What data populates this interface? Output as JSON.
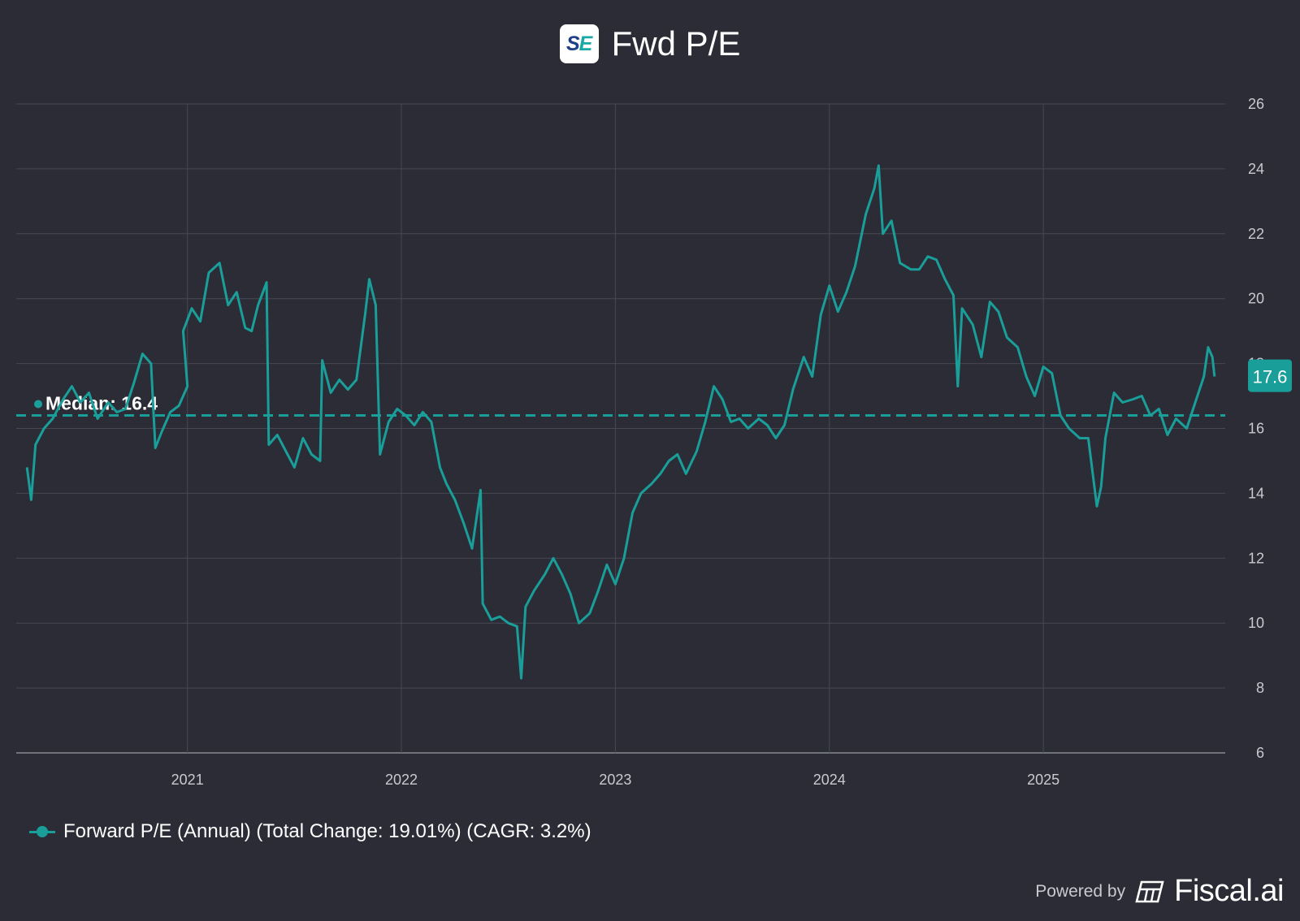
{
  "header": {
    "title": "Fwd P/E",
    "logo_text_s": "S",
    "logo_text_e": "E"
  },
  "legend": {
    "label": "Forward P/E (Annual) (Total Change: 19.01%) (CAGR: 3.2%)"
  },
  "footer": {
    "powered_by": "Powered by",
    "brand": "Fiscal.ai"
  },
  "colors": {
    "background": "#2b2c35",
    "series": "#1a9e9a",
    "grid": "#474852",
    "text": "#ffffff",
    "axis_text": "#c9cad0"
  },
  "chart_data": {
    "type": "line",
    "title": "Fwd P/E",
    "xlabel": "",
    "ylabel": "",
    "x_ticks": [
      "2021",
      "2022",
      "2023",
      "2024",
      "2025"
    ],
    "y_ticks": [
      6,
      8,
      10,
      12,
      14,
      16,
      18,
      20,
      22,
      24,
      26
    ],
    "ylim": [
      6,
      26
    ],
    "xlim": [
      2020.2,
      2025.85
    ],
    "grid": true,
    "y_axis_position": "right",
    "series": [
      {
        "name": "Forward P/E (Annual)",
        "total_change": "19.01%",
        "cagr": "3.2%",
        "last_value_label": "17.6",
        "points": [
          [
            2020.25,
            14.8
          ],
          [
            2020.27,
            13.8
          ],
          [
            2020.29,
            15.5
          ],
          [
            2020.33,
            16.0
          ],
          [
            2020.37,
            16.3
          ],
          [
            2020.42,
            16.9
          ],
          [
            2020.46,
            17.3
          ],
          [
            2020.5,
            16.8
          ],
          [
            2020.54,
            17.1
          ],
          [
            2020.58,
            16.3
          ],
          [
            2020.63,
            16.8
          ],
          [
            2020.67,
            16.5
          ],
          [
            2020.71,
            16.6
          ],
          [
            2020.75,
            17.4
          ],
          [
            2020.79,
            18.3
          ],
          [
            2020.83,
            18.0
          ],
          [
            2020.85,
            15.4
          ],
          [
            2020.88,
            15.9
          ],
          [
            2020.92,
            16.5
          ],
          [
            2020.96,
            16.7
          ],
          [
            2021.0,
            17.3
          ],
          [
            2020.98,
            19.0
          ],
          [
            2021.02,
            19.7
          ],
          [
            2021.06,
            19.3
          ],
          [
            2021.1,
            20.8
          ],
          [
            2021.15,
            21.1
          ],
          [
            2021.19,
            19.8
          ],
          [
            2021.23,
            20.2
          ],
          [
            2021.27,
            19.1
          ],
          [
            2021.3,
            19.0
          ],
          [
            2021.33,
            19.8
          ],
          [
            2021.37,
            20.5
          ],
          [
            2021.38,
            15.5
          ],
          [
            2021.42,
            15.8
          ],
          [
            2021.46,
            15.3
          ],
          [
            2021.5,
            14.8
          ],
          [
            2021.54,
            15.7
          ],
          [
            2021.58,
            15.2
          ],
          [
            2021.62,
            15.0
          ],
          [
            2021.63,
            18.1
          ],
          [
            2021.67,
            17.1
          ],
          [
            2021.71,
            17.5
          ],
          [
            2021.75,
            17.2
          ],
          [
            2021.79,
            17.5
          ],
          [
            2021.83,
            19.5
          ],
          [
            2021.85,
            20.6
          ],
          [
            2021.88,
            19.8
          ],
          [
            2021.9,
            15.2
          ],
          [
            2021.94,
            16.2
          ],
          [
            2021.98,
            16.6
          ],
          [
            2022.02,
            16.4
          ],
          [
            2022.06,
            16.1
          ],
          [
            2022.1,
            16.5
          ],
          [
            2022.14,
            16.2
          ],
          [
            2022.18,
            14.8
          ],
          [
            2022.21,
            14.3
          ],
          [
            2022.25,
            13.8
          ],
          [
            2022.29,
            13.1
          ],
          [
            2022.33,
            12.3
          ],
          [
            2022.37,
            14.1
          ],
          [
            2022.38,
            10.6
          ],
          [
            2022.42,
            10.1
          ],
          [
            2022.46,
            10.2
          ],
          [
            2022.5,
            10.0
          ],
          [
            2022.54,
            9.9
          ],
          [
            2022.56,
            8.3
          ],
          [
            2022.58,
            10.5
          ],
          [
            2022.62,
            11.0
          ],
          [
            2022.67,
            11.5
          ],
          [
            2022.71,
            12.0
          ],
          [
            2022.75,
            11.5
          ],
          [
            2022.79,
            10.9
          ],
          [
            2022.83,
            10.0
          ],
          [
            2022.88,
            10.3
          ],
          [
            2022.92,
            11.0
          ],
          [
            2022.96,
            11.8
          ],
          [
            2023.0,
            11.2
          ],
          [
            2023.04,
            12.0
          ],
          [
            2023.08,
            13.4
          ],
          [
            2023.12,
            14.0
          ],
          [
            2023.17,
            14.3
          ],
          [
            2023.21,
            14.6
          ],
          [
            2023.25,
            15.0
          ],
          [
            2023.29,
            15.2
          ],
          [
            2023.33,
            14.6
          ],
          [
            2023.38,
            15.3
          ],
          [
            2023.42,
            16.2
          ],
          [
            2023.46,
            17.3
          ],
          [
            2023.5,
            16.9
          ],
          [
            2023.54,
            16.2
          ],
          [
            2023.58,
            16.3
          ],
          [
            2023.62,
            16.0
          ],
          [
            2023.67,
            16.3
          ],
          [
            2023.71,
            16.1
          ],
          [
            2023.75,
            15.7
          ],
          [
            2023.79,
            16.1
          ],
          [
            2023.83,
            17.2
          ],
          [
            2023.88,
            18.2
          ],
          [
            2023.92,
            17.6
          ],
          [
            2023.96,
            19.5
          ],
          [
            2024.0,
            20.4
          ],
          [
            2024.04,
            19.6
          ],
          [
            2024.08,
            20.2
          ],
          [
            2024.12,
            21.0
          ],
          [
            2024.17,
            22.6
          ],
          [
            2024.21,
            23.4
          ],
          [
            2024.23,
            24.1
          ],
          [
            2024.25,
            22.0
          ],
          [
            2024.29,
            22.4
          ],
          [
            2024.33,
            21.1
          ],
          [
            2024.38,
            20.9
          ],
          [
            2024.42,
            20.9
          ],
          [
            2024.46,
            21.3
          ],
          [
            2024.5,
            21.2
          ],
          [
            2024.54,
            20.6
          ],
          [
            2024.58,
            20.1
          ],
          [
            2024.6,
            17.3
          ],
          [
            2024.62,
            19.7
          ],
          [
            2024.67,
            19.2
          ],
          [
            2024.71,
            18.2
          ],
          [
            2024.75,
            19.9
          ],
          [
            2024.79,
            19.6
          ],
          [
            2024.83,
            18.8
          ],
          [
            2024.88,
            18.5
          ],
          [
            2024.92,
            17.6
          ],
          [
            2024.96,
            17.0
          ],
          [
            2025.0,
            17.9
          ],
          [
            2025.04,
            17.7
          ],
          [
            2025.08,
            16.4
          ],
          [
            2025.12,
            16.0
          ],
          [
            2025.17,
            15.7
          ],
          [
            2025.21,
            15.7
          ],
          [
            2025.25,
            13.6
          ],
          [
            2025.27,
            14.2
          ],
          [
            2025.29,
            15.7
          ],
          [
            2025.33,
            17.1
          ],
          [
            2025.37,
            16.8
          ],
          [
            2025.42,
            16.9
          ],
          [
            2025.46,
            17.0
          ],
          [
            2025.5,
            16.4
          ],
          [
            2025.54,
            16.6
          ],
          [
            2025.58,
            15.8
          ],
          [
            2025.62,
            16.3
          ],
          [
            2025.67,
            16.0
          ],
          [
            2025.71,
            16.8
          ],
          [
            2025.75,
            17.6
          ],
          [
            2025.77,
            18.5
          ],
          [
            2025.79,
            18.2
          ],
          [
            2025.8,
            17.6
          ]
        ]
      }
    ],
    "reference_lines": [
      {
        "label": "Median: 16.4",
        "value": 16.4,
        "style": "dashed"
      }
    ]
  }
}
